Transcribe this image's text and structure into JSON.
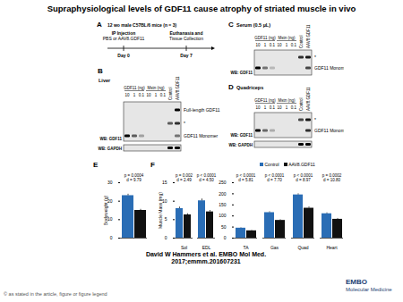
{
  "title": "Supraphysiological levels of GDF11 cause atrophy of striated muscle in vivo",
  "panels": {
    "A": {
      "letter": "A",
      "header": "12 wo male C57BL/6 mice (n = 3)",
      "events": [
        {
          "lines": [
            "IP Injection",
            "PBS or AAV8.GDF11"
          ],
          "day": "Day 0"
        },
        {
          "lines": [
            "Euthanasia and",
            "Tissue Collection"
          ],
          "day": "Day 7"
        }
      ]
    },
    "B": {
      "letter": "B",
      "title": "Liver",
      "groups": [
        "GDF11 (ng)",
        "Mstn (ng)"
      ],
      "lanes": [
        "10",
        "1",
        "0.1",
        "10",
        "1",
        "0.1",
        "Control",
        "AAV8.GDF11"
      ],
      "right_labels": [
        "Full-length GDF11",
        "*",
        "GDF11 Monomer"
      ],
      "left_labels": [
        "WB: GDF11",
        "WB: GAPDH"
      ]
    },
    "C": {
      "letter": "C",
      "title": "Serum (0.5 µL)",
      "groups": [
        "GDF11 (ng)",
        "Mstn (ng)"
      ],
      "lanes": [
        "10",
        "1",
        "0.1",
        "10",
        "1",
        "0.1",
        "Control",
        "AAV8.GDF11"
      ],
      "right_labels": [
        "*",
        "GDF11 Monomer"
      ],
      "left_labels": [
        "WB: GDF11"
      ]
    },
    "D": {
      "letter": "D",
      "title": "Quadriceps",
      "groups": [
        "GDF11 (ng)",
        "Mstn (ng)"
      ],
      "lanes": [
        "10",
        "1",
        "0.1",
        "10",
        "1",
        "0.1",
        "Control",
        "AAV8.GDF11"
      ],
      "right_labels": [
        "*",
        "GDF11 Monomer"
      ],
      "left_labels": [
        "WB: GDF11",
        "WB: GAPDH"
      ]
    }
  },
  "chart_data": [
    {
      "type": "bar",
      "panel": "E",
      "ylabel": "Bodyweight (g)",
      "categories": [
        null
      ],
      "series": [
        {
          "color": "#2a6db5",
          "values": [
            23
          ],
          "errors": [
            0.8
          ]
        },
        {
          "color": "#111111",
          "values": [
            15
          ],
          "errors": [
            0.6
          ]
        }
      ],
      "annotations": [
        [
          "p = 0.0004",
          "d = 9.79"
        ]
      ],
      "ylim": [
        0,
        30
      ],
      "yticks": [
        0,
        10,
        20,
        30
      ]
    },
    {
      "type": "bar",
      "panel": "F",
      "ylabel": "Muscle Mass (mg)",
      "categories": [
        "Sol",
        "EDL"
      ],
      "series": [
        {
          "color": "#2a6db5",
          "values": [
            8.0,
            10.1
          ],
          "errors": [
            0.4,
            0.5
          ]
        },
        {
          "color": "#111111",
          "values": [
            6.3,
            7.1
          ],
          "errors": [
            0.3,
            0.4
          ]
        }
      ],
      "annotations": [
        [
          "p = 0.002",
          "d = 2.49"
        ],
        [
          "p < 0.0001",
          "d = 4.50"
        ]
      ],
      "ylim": [
        0,
        15
      ],
      "yticks": [
        0,
        5,
        10,
        15
      ]
    },
    {
      "type": "bar",
      "legend": "top-left",
      "categories": [
        "TA",
        "Gas",
        "Quad",
        "Heart"
      ],
      "series": [
        {
          "name": "Control",
          "color": "#2a6db5",
          "values": [
            45,
            115,
            195,
            110
          ],
          "errors": [
            2,
            4,
            5,
            4
          ]
        },
        {
          "name": "AAV8.GDF11",
          "color": "#111111",
          "values": [
            33,
            80,
            135,
            85
          ],
          "errors": [
            2,
            3,
            6,
            4
          ]
        }
      ],
      "annotations": [
        [
          "p < 0.0001",
          "d = 5.81"
        ],
        [
          "p < 0.0001",
          "d = 7.70"
        ],
        [
          "p < 0.0001",
          "d = 8.97"
        ],
        [
          "p = 0.0002",
          "d = 10.80"
        ]
      ],
      "ylim": [
        0,
        250
      ],
      "yticks": [
        0,
        50,
        100,
        150,
        200,
        250
      ]
    }
  ],
  "footer": {
    "caption": [
      "David W Hammers et al. EMBO Mol Med.",
      "2017;emmm.201607231"
    ],
    "copyright": "© as stated in the article, figure or figure legend",
    "logo": [
      "EMBO",
      "Molecular Medicine"
    ]
  }
}
